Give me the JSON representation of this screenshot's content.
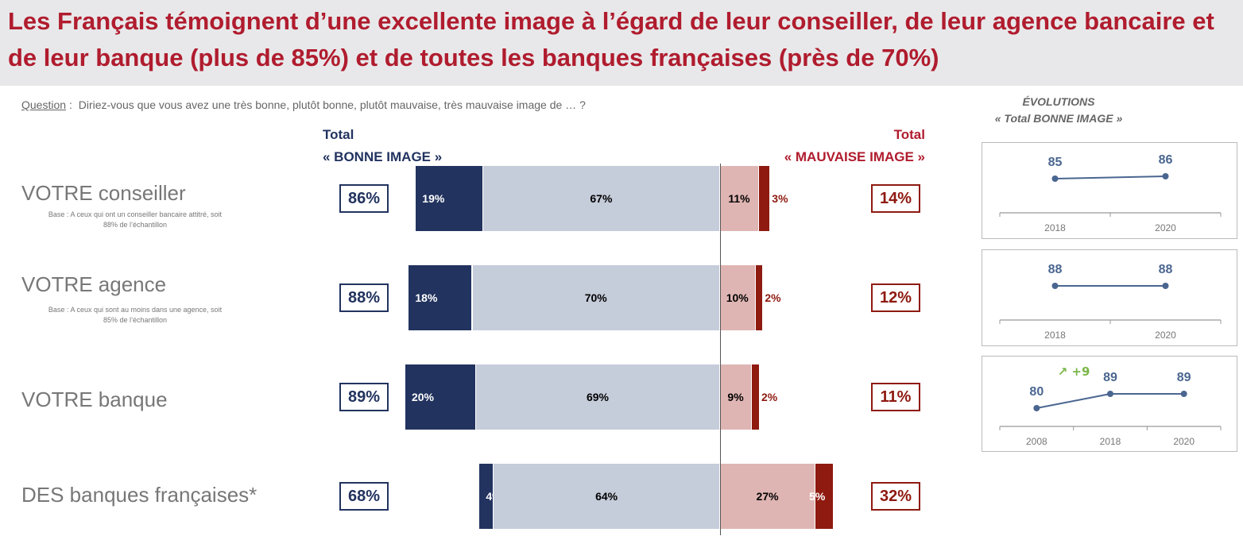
{
  "title": "Les Français témoignent d’une excellente image à l’égard de leur conseiller, de leur agence bancaire et de leur banque (plus de 85%) et de toutes les banques françaises (près de 70%)",
  "question": {
    "label": "Question",
    "sep": ":",
    "text": "Diriez-vous que vous avez une très bonne, plutôt bonne, plutôt mauvaise, très mauvaise image de … ?"
  },
  "headers": {
    "good_1": "Total",
    "good_2": "« BONNE IMAGE »",
    "bad_1": "Total",
    "bad_2": "« MAUVAISE IMAGE »"
  },
  "colors": {
    "tres_bonne": "#22335f",
    "plutot_bonne": "#c5ccda",
    "plutot_mauvaise": "#dfb5b3",
    "tres_mauvaise": "#8e1a10",
    "title": "#b01c2e",
    "line": "#4a6690",
    "delta": "#7ab648"
  },
  "chart_data": {
    "type": "bar",
    "orientation": "diverging-stacked-horizontal",
    "categories": [
      "VOTRE conseiller",
      "VOTRE agence",
      "VOTRE banque",
      "DES banques françaises*"
    ],
    "bases": [
      "Base : A ceux qui ont un conseiller bancaire attitré, soit 88% de l’échantillon",
      "Base : A ceux qui sont au moins dans une agence, soit 85% de l’échantillon",
      "",
      ""
    ],
    "series": [
      {
        "key": "tres_bonne",
        "values": [
          19,
          18,
          20,
          4
        ]
      },
      {
        "key": "plutot_bonne",
        "values": [
          67,
          70,
          69,
          64
        ]
      },
      {
        "key": "plutot_mauvaise",
        "values": [
          11,
          10,
          9,
          27
        ]
      },
      {
        "key": "tres_mauvaise",
        "values": [
          3,
          2,
          2,
          5
        ]
      }
    ],
    "total_bonne": [
      "86%",
      "88%",
      "89%",
      "68%"
    ],
    "total_mauvaise": [
      "14%",
      "12%",
      "11%",
      "32%"
    ]
  },
  "evolutions": {
    "title_1": "ÉVOLUTIONS",
    "title_2": "« Total BONNE IMAGE »",
    "charts": [
      {
        "type": "line",
        "x": [
          "2018",
          "2020"
        ],
        "y": [
          85,
          86
        ]
      },
      {
        "type": "line",
        "x": [
          "2018",
          "2020"
        ],
        "y": [
          88,
          88
        ]
      },
      {
        "type": "line",
        "x": [
          "2008",
          "2018",
          "2020"
        ],
        "y": [
          80,
          89,
          89
        ],
        "annotation": "↗ +9"
      }
    ]
  }
}
